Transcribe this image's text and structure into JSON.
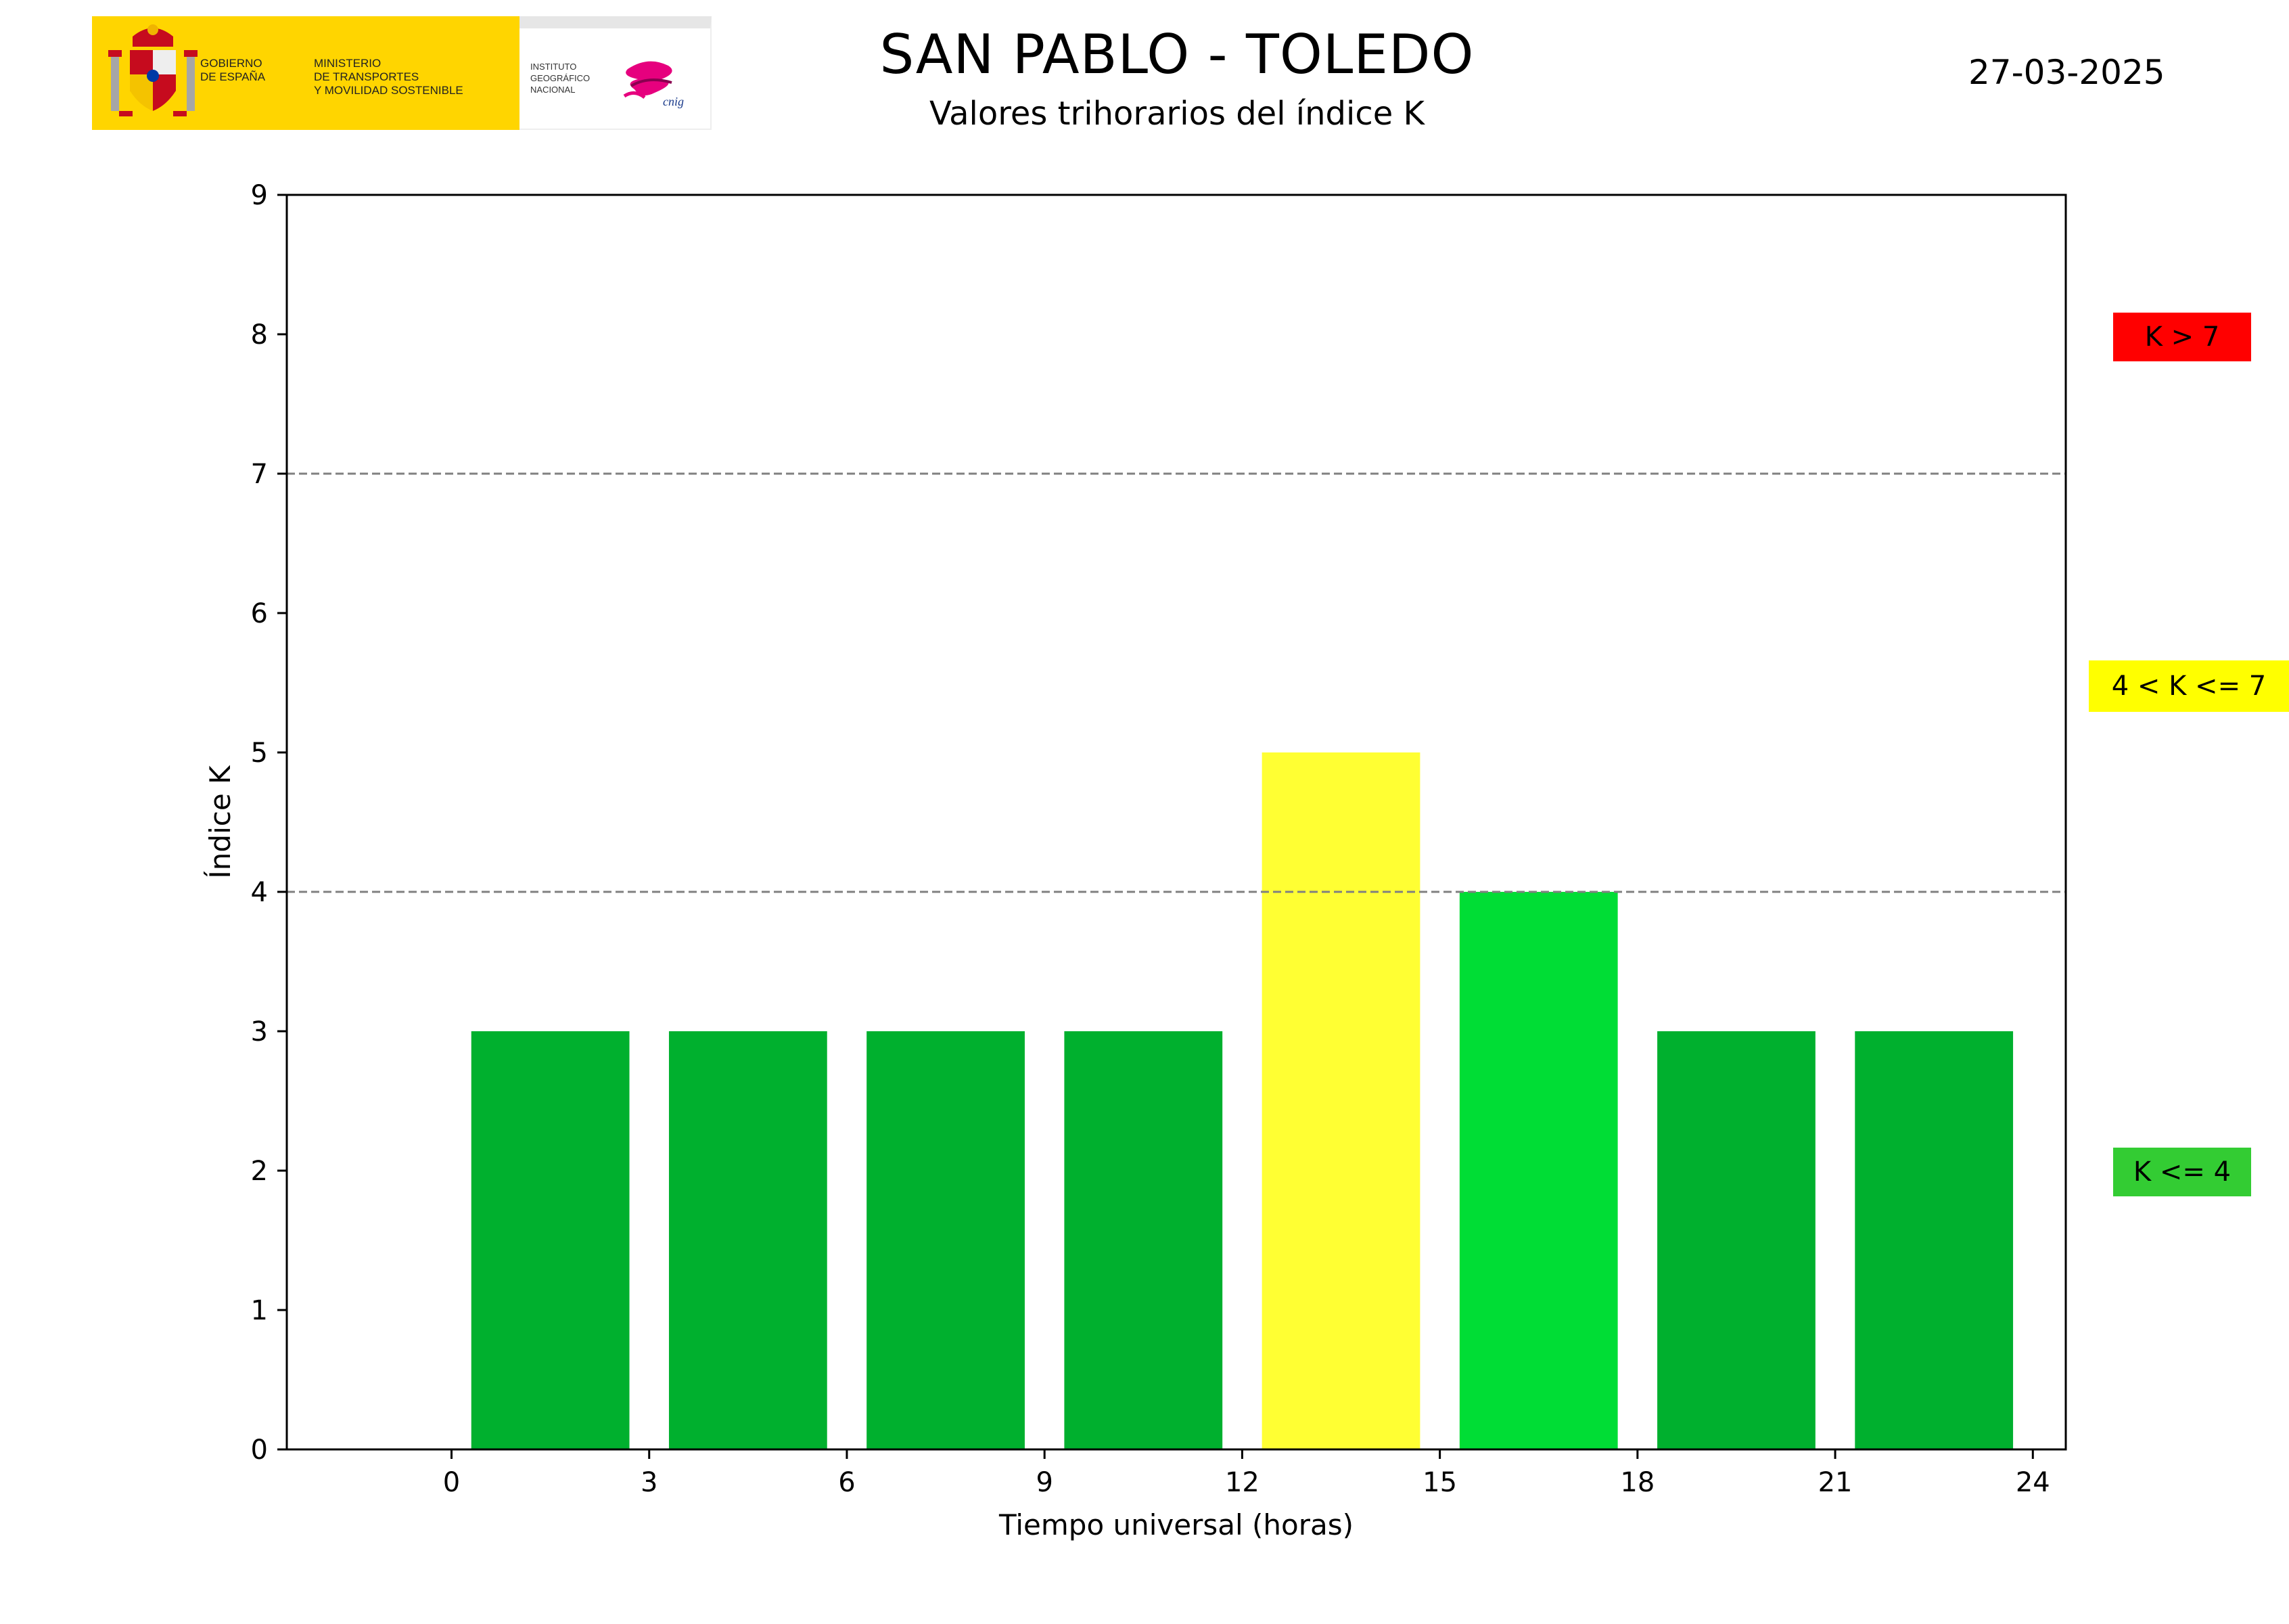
{
  "header": {
    "logo_gobierno": "GOBIERNO\nDE ESPAÑA",
    "logo_ministerio": "MINISTERIO\nDE TRANSPORTES\nY MOVILIDAD SOSTENIBLE",
    "logo_instituto": "INSTITUTO\nGEOGRÁFICO\nNACIONAL",
    "logo_cnig": "cnig",
    "date": "27-03-2025"
  },
  "legend": {
    "high": {
      "label": "K > 7",
      "color": "#ff0000"
    },
    "mid": {
      "label": "4 < K <= 7",
      "color": "#ffff00"
    },
    "low": {
      "label": "K <= 4",
      "color": "#33cc33"
    }
  },
  "chart_data": {
    "type": "bar",
    "title": "SAN PABLO - TOLEDO",
    "subtitle": "Valores trihorarios del índice K",
    "xlabel": "Tiempo universal (horas)",
    "ylabel": "Índice K",
    "xlim": [
      -2.5,
      24.5
    ],
    "ylim": [
      0,
      9
    ],
    "xticks": [
      0,
      3,
      6,
      9,
      12,
      15,
      18,
      21,
      24
    ],
    "yticks": [
      0,
      1,
      2,
      3,
      4,
      5,
      6,
      7,
      8,
      9
    ],
    "bar_width": 2.4,
    "bars": [
      {
        "x": 1.5,
        "value": 3,
        "color": "#00b02e"
      },
      {
        "x": 4.5,
        "value": 3,
        "color": "#00b02e"
      },
      {
        "x": 7.5,
        "value": 3,
        "color": "#00b02e"
      },
      {
        "x": 10.5,
        "value": 3,
        "color": "#00b02e"
      },
      {
        "x": 13.5,
        "value": 5,
        "color": "#ffff33"
      },
      {
        "x": 16.5,
        "value": 4,
        "color": "#00dd35"
      },
      {
        "x": 19.5,
        "value": 3,
        "color": "#00b02e"
      },
      {
        "x": 22.5,
        "value": 3,
        "color": "#00b02e"
      }
    ],
    "threshold_lines": [
      4,
      7
    ],
    "threshold_color": "#808080",
    "grid": false,
    "legend_placement": "right"
  }
}
